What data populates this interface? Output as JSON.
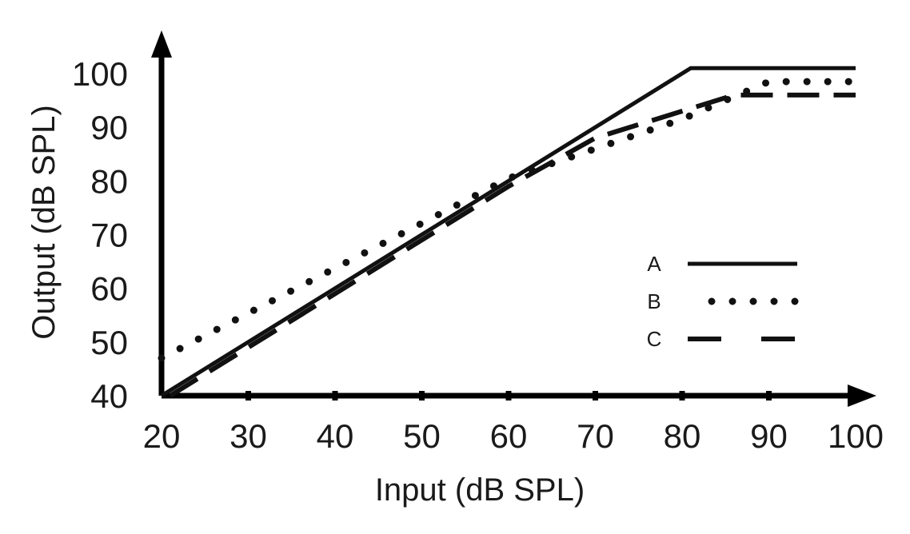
{
  "chart_data": {
    "type": "line",
    "title": "",
    "xlabel": "Input (dB SPL)",
    "ylabel": "Output (dB SPL)",
    "xlim": [
      20,
      100
    ],
    "ylim": [
      40,
      100
    ],
    "x_ticks": [
      "20",
      "30",
      "40",
      "50",
      "60",
      "70",
      "80",
      "90",
      "100"
    ],
    "y_ticks": [
      "40",
      "50",
      "60",
      "70",
      "80",
      "90",
      "100"
    ],
    "grid": false,
    "legend_position": "right",
    "series": [
      {
        "name": "A",
        "style": "solid",
        "x": [
          20,
          81,
          100
        ],
        "y": [
          40,
          101,
          101
        ]
      },
      {
        "name": "B",
        "style": "dotted",
        "x": [
          20,
          60,
          80,
          90,
          100
        ],
        "y": [
          47,
          80.5,
          91.5,
          98.5,
          98.5
        ]
      },
      {
        "name": "C",
        "style": "dashed",
        "x": [
          21,
          60,
          70,
          86,
          100
        ],
        "y": [
          40,
          79,
          88,
          96,
          96
        ]
      }
    ],
    "colors": {
      "line": "#111111",
      "axis": "#000000",
      "text": "#1a1a1a"
    }
  }
}
